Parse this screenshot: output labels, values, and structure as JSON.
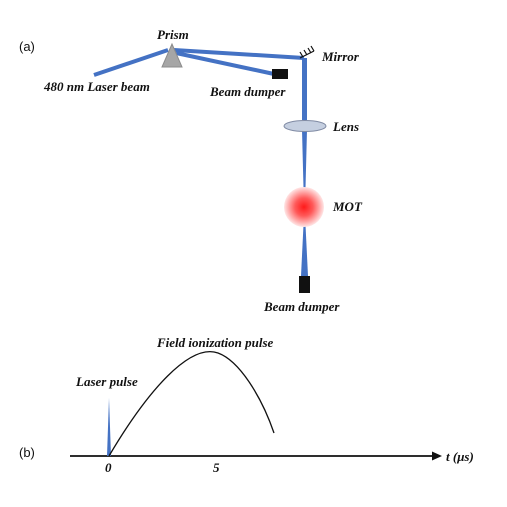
{
  "panel_a": {
    "tag": "(a)",
    "labels": {
      "prism": "Prism",
      "mirror": "Mirror",
      "laser_beam": "480 nm Laser beam",
      "beam_dumper_top": "Beam dumper",
      "lens": "Lens",
      "mot": "MOT",
      "beam_dumper_bottom": "Beam dumper"
    }
  },
  "panel_b": {
    "tag": "(b)",
    "labels": {
      "field_pulse": "Field ionization pulse",
      "laser_pulse": "Laser pulse",
      "axis": "t (μs)",
      "tick_0": "0",
      "tick_5": "5"
    }
  },
  "colors": {
    "beam": "#4472c4",
    "mot_core": "#ff1a1a",
    "prism": "#a6a6a6",
    "lens": "#c5cfe0",
    "dumper": "#111111",
    "pulse_curve": "#111111",
    "axis": "#111111"
  }
}
